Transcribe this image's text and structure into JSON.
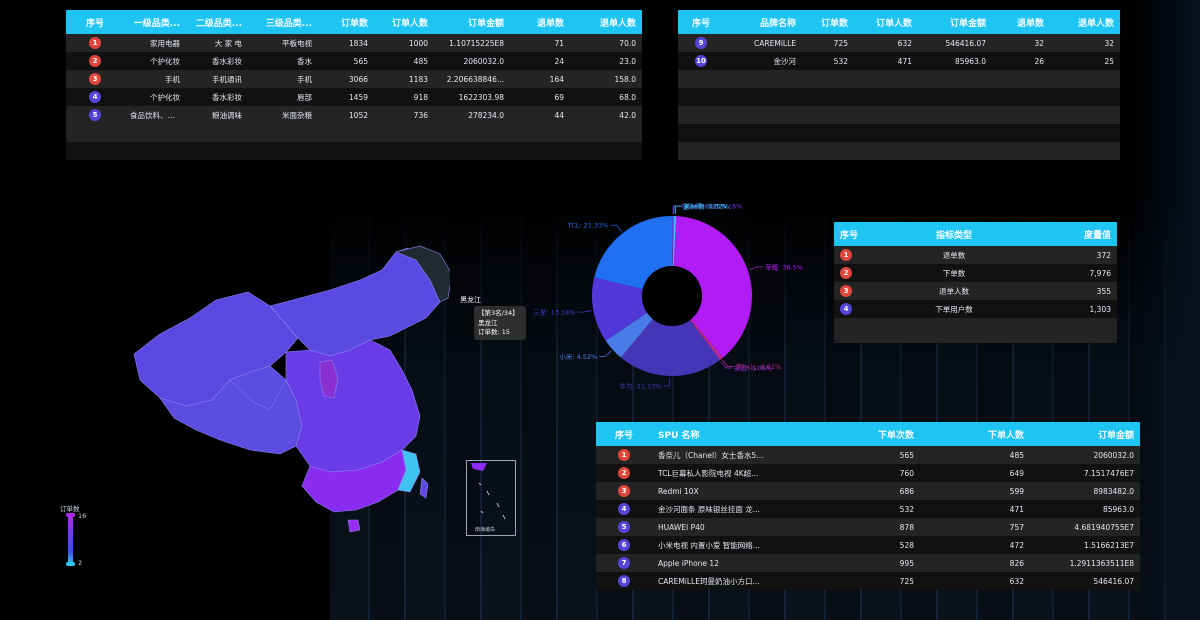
{
  "colors": {
    "header": "#1ec4f2",
    "rank_red": "#e0463c",
    "rank_blue": "#5544d8",
    "row_odd": "#242424",
    "row_even": "#111111"
  },
  "category_table": {
    "headers": [
      "序号",
      "一级品类...",
      "二级品类...",
      "三级品类...",
      "订单数",
      "订单人数",
      "订单金额",
      "退单数",
      "退单人数"
    ],
    "rows": [
      {
        "rank": "1",
        "c1": "家用电器",
        "c2": "大 家 电",
        "c3": "平板电视",
        "orders": "1834",
        "buyers": "1000",
        "amount": "1.10715225E8",
        "refunds": "71",
        "refund_users": "70.0"
      },
      {
        "rank": "2",
        "c1": "个护化妆",
        "c2": "香水彩妆",
        "c3": "香水",
        "orders": "565",
        "buyers": "485",
        "amount": "2060032.0",
        "refunds": "24",
        "refund_users": "23.0"
      },
      {
        "rank": "3",
        "c1": "手机",
        "c2": "手机通讯",
        "c3": "手机",
        "orders": "3066",
        "buyers": "1183",
        "amount": "2.206638846...",
        "refunds": "164",
        "refund_users": "158.0"
      },
      {
        "rank": "4",
        "c1": "个护化妆",
        "c2": "香水彩妆",
        "c3": "唇部",
        "orders": "1459",
        "buyers": "918",
        "amount": "1622303.98",
        "refunds": "69",
        "refund_users": "68.0"
      },
      {
        "rank": "5",
        "c1": "食品饮料、保...",
        "c2": "粮油调味",
        "c3": "米面杂粮",
        "orders": "1052",
        "buyers": "736",
        "amount": "278234.0",
        "refunds": "44",
        "refund_users": "42.0"
      }
    ]
  },
  "brand_table": {
    "headers": [
      "序号",
      "品牌名称",
      "订单数",
      "订单人数",
      "订单金额",
      "退单数",
      "退单人数"
    ],
    "rows": [
      {
        "rank": "9",
        "brand": "CAREMiLLE",
        "orders": "725",
        "buyers": "632",
        "amount": "546416.07",
        "refunds": "32",
        "refund_users": "32"
      },
      {
        "rank": "10",
        "brand": "金沙河",
        "orders": "532",
        "buyers": "471",
        "amount": "85963.0",
        "refunds": "26",
        "refund_users": "25"
      }
    ]
  },
  "map": {
    "tooltip_line1": "【第3名/34】",
    "tooltip_line2": "黑龙江",
    "tooltip_line3": "订单数: 15",
    "region_label": "黑龙江",
    "legend_title": "订单数",
    "legend_max": "16",
    "legend_min": "2",
    "inset_label": "南海诸岛"
  },
  "chart_data": {
    "type": "pie",
    "donut": true,
    "labels": [
      "荣耀",
      "美ke嗨",
      "金沙河",
      "CAREMiLLE",
      "TCL",
      "三星",
      "小米",
      "华为",
      "长虹",
      "美ke儿"
    ],
    "slice_labels": [
      "荣耀: 38.5%",
      "美ke嗨: 0.32%",
      "金沙河: 0.03%",
      "CAREMiLLE: 0.16%",
      "TCL: 21.33%",
      "三星: 13.14%",
      "小米: 4.52%",
      "华为: 21.13%",
      "长虹: 0.06%",
      "美ke儿: 0.61%"
    ],
    "values": [
      38.5,
      0.32,
      0.03,
      0.16,
      21.33,
      13.14,
      4.52,
      21.13,
      0.06,
      0.61
    ],
    "colors": [
      "#b21cf4",
      "#3fd2f2",
      "#2a8ef0",
      "#7a3af0",
      "#1f6ff0",
      "#5136d8",
      "#4a7ce8",
      "#4536b8",
      "#8a2fd0",
      "#c02a8a"
    ]
  },
  "metric_table": {
    "headers": [
      "序号",
      "指标类型",
      "度量值"
    ],
    "rows": [
      {
        "rank": "1",
        "type": "退单数",
        "value": "372"
      },
      {
        "rank": "2",
        "type": "下单数",
        "value": "7,976"
      },
      {
        "rank": "3",
        "type": "退单人数",
        "value": "355"
      },
      {
        "rank": "4",
        "type": "下单用户数",
        "value": "1,303"
      }
    ]
  },
  "spu_table": {
    "headers": [
      "序号",
      "SPU 名称",
      "下单次数",
      "下单人数",
      "订单金额"
    ],
    "rows": [
      {
        "rank": "1",
        "name": "香奈儿（Chanel）女士香水5...",
        "orders": "565",
        "buyers": "485",
        "amount": "2060032.0"
      },
      {
        "rank": "2",
        "name": "TCL巨幕私人影院电视 4K超...",
        "orders": "760",
        "buyers": "649",
        "amount": "7.1517476E7"
      },
      {
        "rank": "3",
        "name": "Redmi 10X",
        "orders": "686",
        "buyers": "599",
        "amount": "8983482.0"
      },
      {
        "rank": "4",
        "name": "金沙河面条 原味银丝挂面 龙...",
        "orders": "532",
        "buyers": "471",
        "amount": "85963.0"
      },
      {
        "rank": "5",
        "name": "HUAWEI P40",
        "orders": "878",
        "buyers": "757",
        "amount": "4.681940755E7"
      },
      {
        "rank": "6",
        "name": "小米电视 内置小爱 智能网络...",
        "orders": "528",
        "buyers": "472",
        "amount": "1.5166213E7"
      },
      {
        "rank": "7",
        "name": "Apple iPhone 12",
        "orders": "995",
        "buyers": "826",
        "amount": "1.2911363511E8"
      },
      {
        "rank": "8",
        "name": "CAREMiLLE珂曼奶油小方口...",
        "orders": "725",
        "buyers": "632",
        "amount": "546416.07"
      }
    ]
  }
}
